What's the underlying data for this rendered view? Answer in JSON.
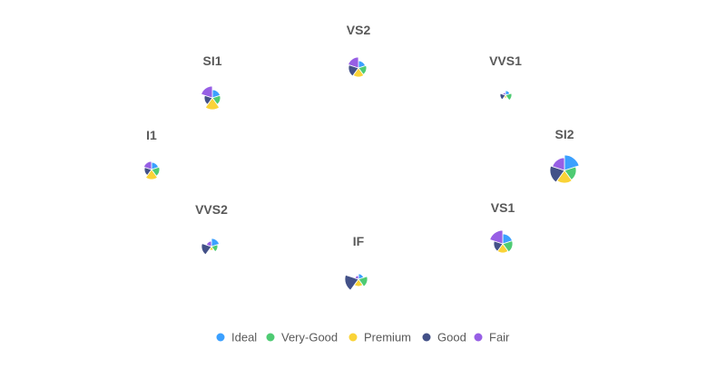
{
  "chart_data": {
    "type": "rose-glyph-map",
    "series": [
      {
        "name": "Ideal",
        "color": "#3BA0FF"
      },
      {
        "name": "Very-Good",
        "color": "#4ECB73"
      },
      {
        "name": "Premium",
        "color": "#FAD337"
      },
      {
        "name": "Good",
        "color": "#435188"
      },
      {
        "name": "Fair",
        "color": "#975FE5"
      }
    ],
    "glyphs": [
      {
        "label": "VS2",
        "values": [
          8,
          9,
          10,
          11,
          12
        ]
      },
      {
        "label": "VVS1",
        "values": [
          5,
          7,
          3,
          6,
          3
        ]
      },
      {
        "label": "SI1",
        "values": [
          9,
          9,
          13,
          9,
          13
        ]
      },
      {
        "label": "SI2",
        "values": [
          17,
          13,
          14,
          16,
          14
        ]
      },
      {
        "label": "I1",
        "values": [
          8,
          9,
          11,
          8,
          9
        ]
      },
      {
        "label": "VS1",
        "values": [
          11,
          11,
          10,
          10,
          15
        ]
      },
      {
        "label": "VVS2",
        "values": [
          9,
          7,
          4,
          11,
          6
        ]
      },
      {
        "label": "IF",
        "values": [
          6,
          10,
          8,
          15,
          4
        ]
      }
    ]
  }
}
